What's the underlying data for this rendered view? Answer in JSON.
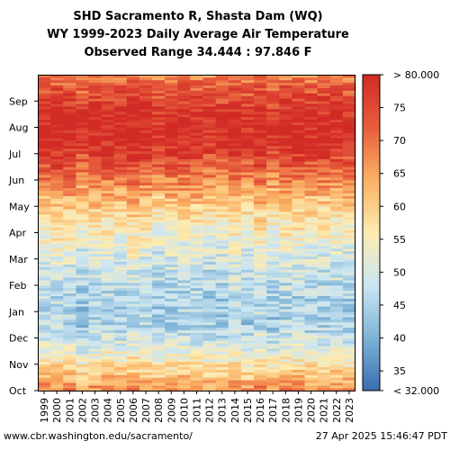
{
  "title_lines": [
    "SHD Sacramento R, Shasta Dam (WQ)",
    "WY 1999-2023 Daily Average Air Temperature",
    "Observed Range 34.444 : 97.846 F"
  ],
  "footer": {
    "source": "www.cbr.washington.edu/sacramento/",
    "timestamp": "27 Apr 2025 15:46:47 PDT"
  },
  "chart_data": {
    "type": "heatmap",
    "years": [
      "1999",
      "2000",
      "2001",
      "2002",
      "2003",
      "2004",
      "2005",
      "2006",
      "2007",
      "2008",
      "2009",
      "2010",
      "2011",
      "2012",
      "2013",
      "2014",
      "2015",
      "2016",
      "2017",
      "2018",
      "2019",
      "2020",
      "2021",
      "2022",
      "2023"
    ],
    "months": [
      "Oct",
      "Nov",
      "Dec",
      "Jan",
      "Feb",
      "Mar",
      "Apr",
      "May",
      "Jun",
      "Jul",
      "Aug",
      "Sep"
    ],
    "monthly_typical_temp_F": [
      62,
      52,
      45,
      45,
      48,
      52,
      57,
      64,
      73,
      80,
      79,
      73
    ],
    "value_range": [
      32,
      80
    ],
    "observed_range": [
      34.444,
      97.846
    ],
    "colorbar_ticks": [
      "< 32.000",
      "35",
      "40",
      "45",
      "50",
      "55",
      "60",
      "65",
      "70",
      "75",
      "> 80.000"
    ],
    "colorbar_tick_values": [
      32,
      35,
      40,
      45,
      50,
      55,
      60,
      65,
      70,
      75,
      80
    ],
    "colorscale": [
      "#3a6db0",
      "#7eb3d6",
      "#cbe6f2",
      "#fdebb0",
      "#fbb163",
      "#e75d3c",
      "#d22a25"
    ]
  }
}
